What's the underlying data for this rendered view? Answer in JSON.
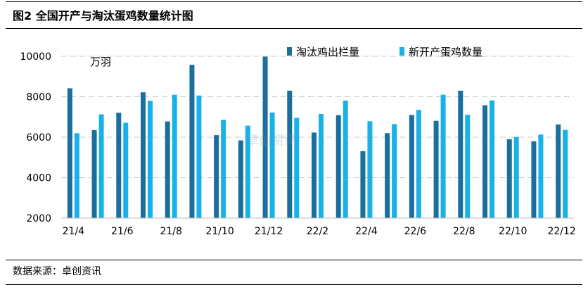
{
  "figure_title": "图2 全国开产与淘汰蛋鸡数量统计图",
  "source": "数据来源：卓创资讯",
  "watermark": "卓创资讯",
  "chart_data": {
    "type": "bar",
    "title": "",
    "xlabel": "",
    "ylabel": "",
    "unit_label": "万羽",
    "ylim": [
      2000,
      10000
    ],
    "yticks": [
      2000,
      4000,
      6000,
      8000,
      10000
    ],
    "grid": true,
    "legend_position": "top-right",
    "categories": [
      "21/4",
      "21/5",
      "21/6",
      "21/7",
      "21/8",
      "21/9",
      "21/10",
      "21/11",
      "21/12",
      "22/1",
      "22/2",
      "22/3",
      "22/4",
      "22/5",
      "22/6",
      "22/7",
      "22/8",
      "22/9",
      "22/10",
      "22/11",
      "22/12"
    ],
    "category_labels": [
      "21/4",
      "",
      "21/6",
      "",
      "21/8",
      "",
      "21/10",
      "",
      "21/12",
      "",
      "22/2",
      "",
      "22/4",
      "",
      "22/6",
      "",
      "22/8",
      "",
      "22/10",
      "",
      "22/12"
    ],
    "series": [
      {
        "name": "淘汰鸡出栏量",
        "color": "#1a6f9c",
        "values": [
          8420,
          6350,
          7210,
          8220,
          6780,
          9580,
          6100,
          5840,
          9980,
          8300,
          6230,
          7090,
          5310,
          6200,
          7100,
          6810,
          8300,
          7580,
          5900,
          5800,
          6630
        ]
      },
      {
        "name": "新开产蛋鸡数量",
        "color": "#19b2e8",
        "values": [
          6200,
          7130,
          6710,
          7800,
          8100,
          8060,
          6860,
          6570,
          7220,
          6960,
          7150,
          7810,
          6790,
          6650,
          7350,
          8100,
          7110,
          7820,
          6010,
          6130,
          6360
        ]
      }
    ]
  }
}
